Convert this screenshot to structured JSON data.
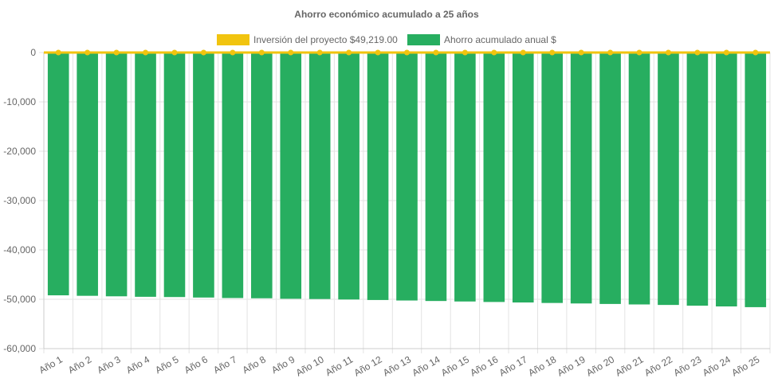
{
  "chart_data": {
    "type": "bar",
    "title": "Ahorro económico acumulado a 25 años",
    "categories": [
      "Año 1",
      "Año 2",
      "Año 3",
      "Año 4",
      "Año 5",
      "Año 6",
      "Año 7",
      "Año 8",
      "Año 9",
      "Año 10",
      "Año 11",
      "Año 12",
      "Año 13",
      "Año 14",
      "Año 15",
      "Año 16",
      "Año 17",
      "Año 18",
      "Año 19",
      "Año 20",
      "Año 21",
      "Año 22",
      "Año 23",
      "Año 24",
      "Año 25"
    ],
    "series": [
      {
        "name": "Inversión del proyecto $49,219.00",
        "type": "line",
        "color": "#f1c40f",
        "values": [
          0,
          0,
          0,
          0,
          0,
          0,
          0,
          0,
          0,
          0,
          0,
          0,
          0,
          0,
          0,
          0,
          0,
          0,
          0,
          0,
          0,
          0,
          0,
          0,
          0
        ]
      },
      {
        "name": "Ahorro acumulado anual $",
        "type": "bar",
        "color": "#27ae60",
        "values": [
          -49200,
          -49300,
          -49400,
          -49500,
          -49550,
          -49650,
          -49750,
          -49800,
          -49900,
          -49950,
          -50050,
          -50150,
          -50250,
          -50350,
          -50450,
          -50550,
          -50650,
          -50750,
          -50850,
          -50950,
          -51050,
          -51150,
          -51300,
          -51450,
          -51600
        ]
      }
    ],
    "xlabel": "",
    "ylabel": "",
    "ylim": [
      -60000,
      0
    ],
    "yticks": [
      0,
      -10000,
      -20000,
      -30000,
      -40000,
      -50000,
      -60000
    ],
    "ytick_labels": [
      "0",
      "-10,000",
      "-20,000",
      "-30,000",
      "-40,000",
      "-50,000",
      "-60,000"
    ],
    "grid": true,
    "legend": "top-center"
  }
}
